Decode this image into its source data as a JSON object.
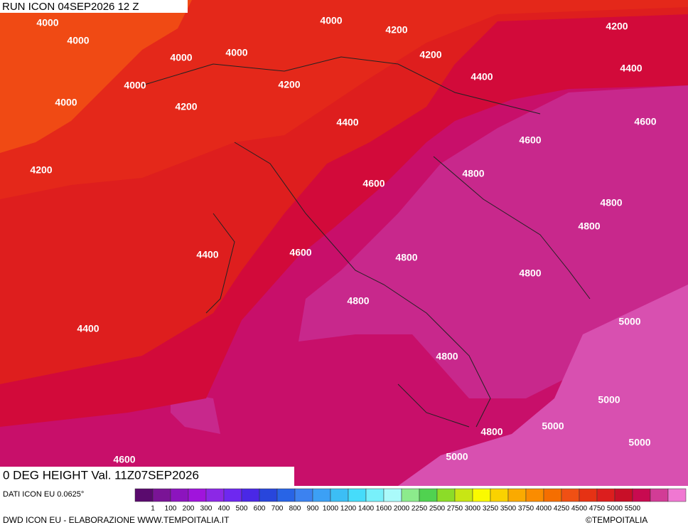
{
  "header": {
    "run": "RUN ICON 04SEP2026 12 Z"
  },
  "map": {
    "title": "0 DEG HEIGHT Val. 11Z07SEP2026",
    "contour_labels": [
      4000,
      4000,
      4000,
      4200,
      4200,
      4000,
      4000,
      4200,
      4400,
      4000,
      4000,
      4200,
      4400,
      4200,
      4400,
      4600,
      4600,
      4200,
      4800,
      4600,
      4800,
      4800,
      4400,
      4600,
      4800,
      4800,
      4800,
      5000,
      4400,
      4800,
      5000,
      5000,
      4800,
      5000,
      5000,
      4600
    ]
  },
  "legend": {
    "source": "DATI ICON EU 0.0625°",
    "labels": [
      1,
      100,
      200,
      300,
      400,
      500,
      600,
      700,
      800,
      900,
      1000,
      1200,
      1400,
      1600,
      2000,
      2250,
      2500,
      2750,
      3000,
      3250,
      3500,
      3750,
      4000,
      4250,
      4500,
      4750,
      5000,
      5500
    ],
    "colors": [
      "#5a0a6e",
      "#7a1496",
      "#8c14be",
      "#a014dc",
      "#8c28e6",
      "#6e28f0",
      "#4a28e6",
      "#2846dc",
      "#2864e6",
      "#3c82f0",
      "#3ca0f5",
      "#3cbef5",
      "#46dcfa",
      "#78f0fa",
      "#aafafa",
      "#8ceb8c",
      "#50d250",
      "#8cdc28",
      "#c8e614",
      "#fafa00",
      "#fad200",
      "#faaa00",
      "#fa8c00",
      "#f56e00",
      "#f05014",
      "#e63214",
      "#dc1e1e",
      "#c80f28",
      "#c80a50",
      "#d23c96",
      "#f078d2"
    ]
  },
  "footer": {
    "credit": "DWD ICON EU - ELABORAZIONE WWW.TEMPOITALIA.IT",
    "copyright": "©TEMPOITALIA"
  }
}
